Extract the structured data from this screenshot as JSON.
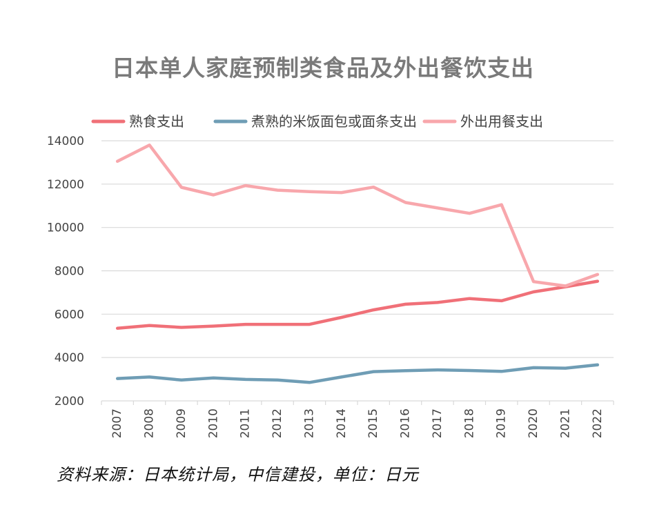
{
  "chart_data": {
    "type": "line",
    "title": "日本单人家庭预制类食品及外出餐饮支出",
    "categories": [
      "2007",
      "2008",
      "2009",
      "2010",
      "2011",
      "2012",
      "2013",
      "2014",
      "2015",
      "2016",
      "2017",
      "2018",
      "2019",
      "2020",
      "2021",
      "2022"
    ],
    "series": [
      {
        "name": "熟食支出",
        "color": "#f07078",
        "values": [
          5350,
          5480,
          5390,
          5450,
          5530,
          5530,
          5530,
          5850,
          6200,
          6460,
          6540,
          6720,
          6620,
          7030,
          7260,
          7520
        ]
      },
      {
        "name": "煮熟的米饭面包或面条支出",
        "color": "#6f9db5",
        "values": [
          3030,
          3100,
          2960,
          3060,
          2990,
          2960,
          2850,
          3100,
          3350,
          3390,
          3430,
          3400,
          3360,
          3530,
          3510,
          3660
        ]
      },
      {
        "name": "外出用餐支出",
        "color": "#f8a7ac",
        "values": [
          13050,
          13800,
          11850,
          11500,
          11930,
          11720,
          11650,
          11610,
          11860,
          11150,
          10900,
          10650,
          11050,
          7500,
          7300,
          7830
        ]
      }
    ],
    "ylim": [
      2000,
      14000
    ],
    "yticks": [
      2000,
      4000,
      6000,
      8000,
      10000,
      12000,
      14000
    ],
    "grid": true,
    "legend": "top",
    "xlabel": "",
    "ylabel": ""
  },
  "source": "资料来源：日本统计局，中信建投，单位：日元"
}
